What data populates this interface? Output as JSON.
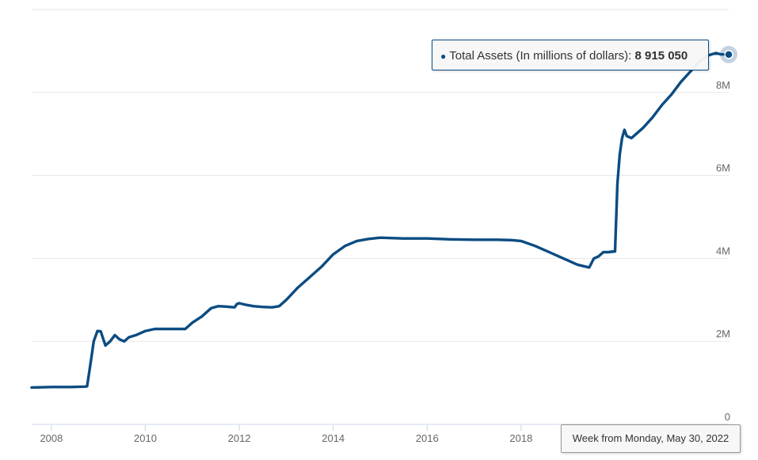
{
  "chart_data": {
    "type": "line",
    "title": "",
    "xlabel": "",
    "ylabel": "",
    "x_ticks": [
      "2008",
      "2010",
      "2012",
      "2014",
      "2016",
      "2018"
    ],
    "y_ticks": [
      "0",
      "2M",
      "4M",
      "6M",
      "8M"
    ],
    "xlim": [
      2007.58,
      2022.42
    ],
    "ylim": [
      0,
      10000000
    ],
    "grid": true,
    "line_color": "#0b4c82",
    "series": [
      {
        "name": "Total Assets (In millions of dollars)",
        "x": [
          2007.58,
          2008.0,
          2008.4,
          2008.72,
          2008.76,
          2008.85,
          2008.9,
          2008.98,
          2009.05,
          2009.15,
          2009.25,
          2009.35,
          2009.45,
          2009.55,
          2009.65,
          2009.8,
          2010.0,
          2010.2,
          2010.4,
          2010.6,
          2010.85,
          2011.0,
          2011.2,
          2011.4,
          2011.55,
          2011.7,
          2011.9,
          2011.95,
          2012.0,
          2012.15,
          2012.3,
          2012.5,
          2012.7,
          2012.85,
          2013.0,
          2013.25,
          2013.5,
          2013.75,
          2014.0,
          2014.25,
          2014.5,
          2014.75,
          2015.0,
          2015.5,
          2016.0,
          2016.5,
          2017.0,
          2017.5,
          2017.8,
          2018.0,
          2018.3,
          2018.6,
          2018.9,
          2019.2,
          2019.45,
          2019.55,
          2019.65,
          2019.75,
          2019.85,
          2020.0,
          2020.05,
          2020.1,
          2020.15,
          2020.2,
          2020.25,
          2020.35,
          2020.45,
          2020.6,
          2020.8,
          2021.0,
          2021.2,
          2021.4,
          2021.6,
          2021.8,
          2022.0,
          2022.15,
          2022.25,
          2022.42
        ],
        "y": [
          890000,
          900000,
          900000,
          910000,
          920000,
          1600000,
          2000000,
          2250000,
          2240000,
          1900000,
          2000000,
          2150000,
          2050000,
          2000000,
          2100000,
          2150000,
          2250000,
          2300000,
          2300000,
          2300000,
          2300000,
          2450000,
          2600000,
          2800000,
          2850000,
          2840000,
          2820000,
          2900000,
          2920000,
          2880000,
          2850000,
          2830000,
          2820000,
          2850000,
          3000000,
          3300000,
          3550000,
          3800000,
          4100000,
          4300000,
          4420000,
          4470000,
          4500000,
          4480000,
          4480000,
          4460000,
          4450000,
          4450000,
          4440000,
          4420000,
          4300000,
          4150000,
          4000000,
          3850000,
          3780000,
          4000000,
          4050000,
          4150000,
          4150000,
          4170000,
          5800000,
          6500000,
          6900000,
          7100000,
          6950000,
          6900000,
          7000000,
          7150000,
          7400000,
          7700000,
          7950000,
          8250000,
          8500000,
          8750000,
          8900000,
          8950000,
          8920000,
          8915050
        ]
      }
    ]
  },
  "tooltip": {
    "series_label": "Total Assets (In millions of dollars): ",
    "value": "8 915 050",
    "bullet": "●",
    "date": "Week from Monday, May 30, 2022"
  }
}
